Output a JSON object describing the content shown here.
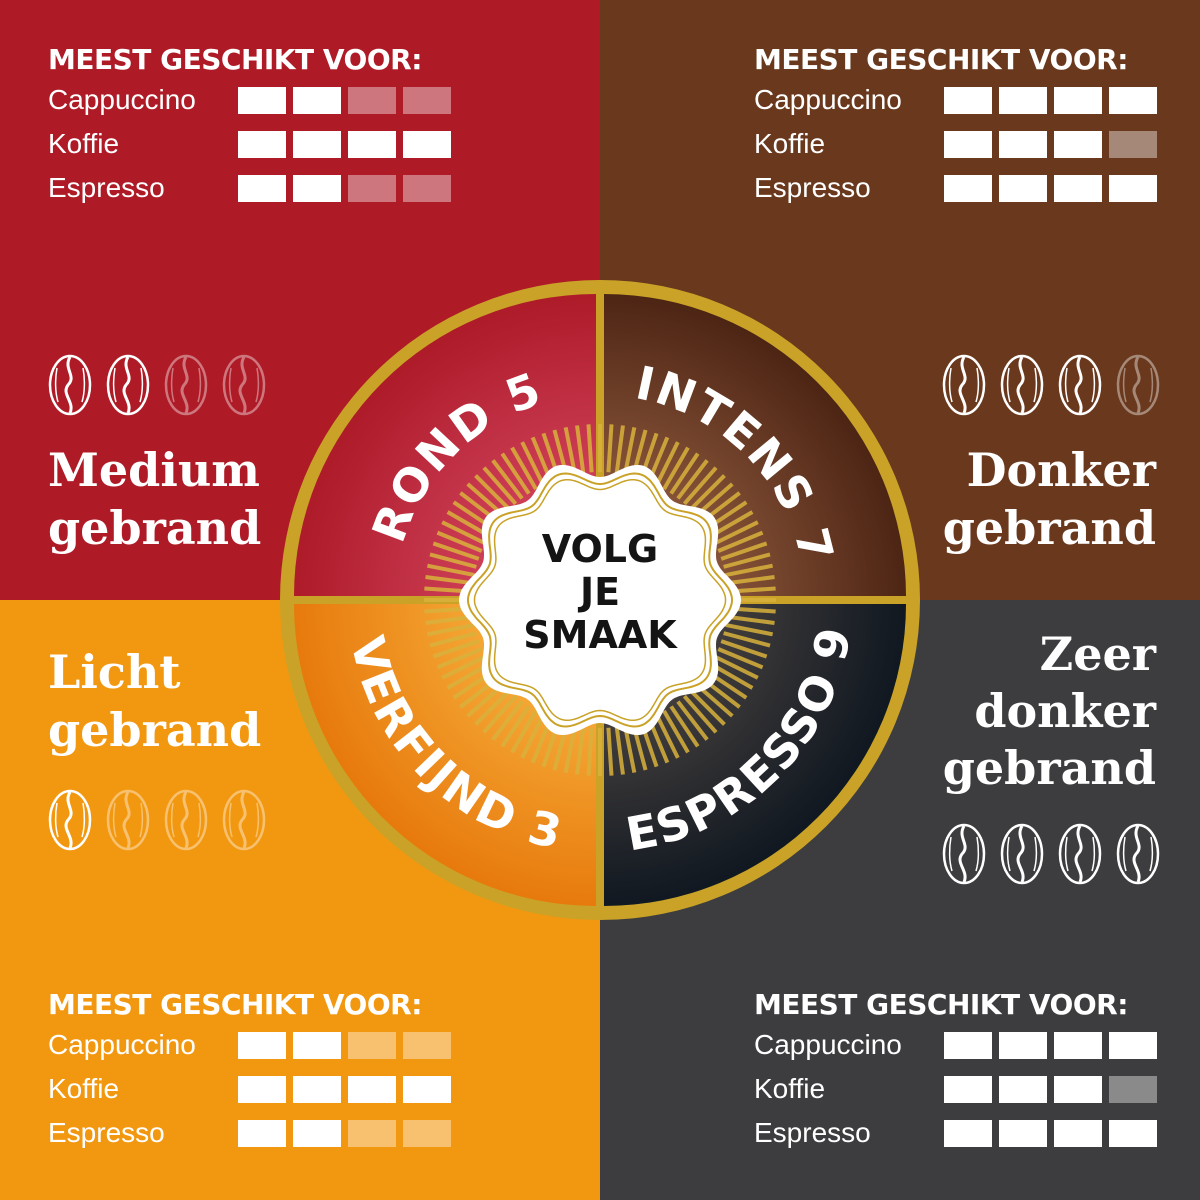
{
  "colors": {
    "red": "#ae1b27",
    "brown": "#6a391d",
    "orange": "#f29810",
    "dark": "#3d3d3f",
    "gold": "#c9a227"
  },
  "center": {
    "lines": [
      "VOLG",
      "JE",
      "SMAAK"
    ]
  },
  "quadrants": [
    {
      "id": "tl",
      "blend": "ROND 5",
      "roast": [
        "Medium",
        "gebrand"
      ],
      "beans_filled": 2,
      "beans_total": 4,
      "suitability": {
        "title": "MEEST GESCHIKT VOOR:",
        "rows": [
          {
            "label": "Cappuccino",
            "score": 2
          },
          {
            "label": "Koffie",
            "score": 4
          },
          {
            "label": "Espresso",
            "score": 2
          }
        ],
        "max": 4
      }
    },
    {
      "id": "tr",
      "blend": "INTENS 7",
      "roast": [
        "Donker",
        "gebrand"
      ],
      "beans_filled": 3,
      "beans_total": 4,
      "suitability": {
        "title": "MEEST GESCHIKT VOOR:",
        "rows": [
          {
            "label": "Cappuccino",
            "score": 4
          },
          {
            "label": "Koffie",
            "score": 3
          },
          {
            "label": "Espresso",
            "score": 4
          }
        ],
        "max": 4
      }
    },
    {
      "id": "bl",
      "blend": "VERFIJND 3",
      "roast": [
        "Licht",
        "gebrand"
      ],
      "beans_filled": 1,
      "beans_total": 4,
      "suitability": {
        "title": "MEEST GESCHIKT VOOR:",
        "rows": [
          {
            "label": "Cappuccino",
            "score": 2
          },
          {
            "label": "Koffie",
            "score": 4
          },
          {
            "label": "Espresso",
            "score": 2
          }
        ],
        "max": 4
      }
    },
    {
      "id": "br",
      "blend": "ESPRESSO 9",
      "roast": [
        "Zeer",
        "donker",
        "gebrand"
      ],
      "beans_filled": 4,
      "beans_total": 4,
      "suitability": {
        "title": "MEEST GESCHIKT VOOR:",
        "rows": [
          {
            "label": "Cappuccino",
            "score": 4
          },
          {
            "label": "Koffie",
            "score": 3
          },
          {
            "label": "Espresso",
            "score": 4
          }
        ],
        "max": 4
      }
    }
  ]
}
